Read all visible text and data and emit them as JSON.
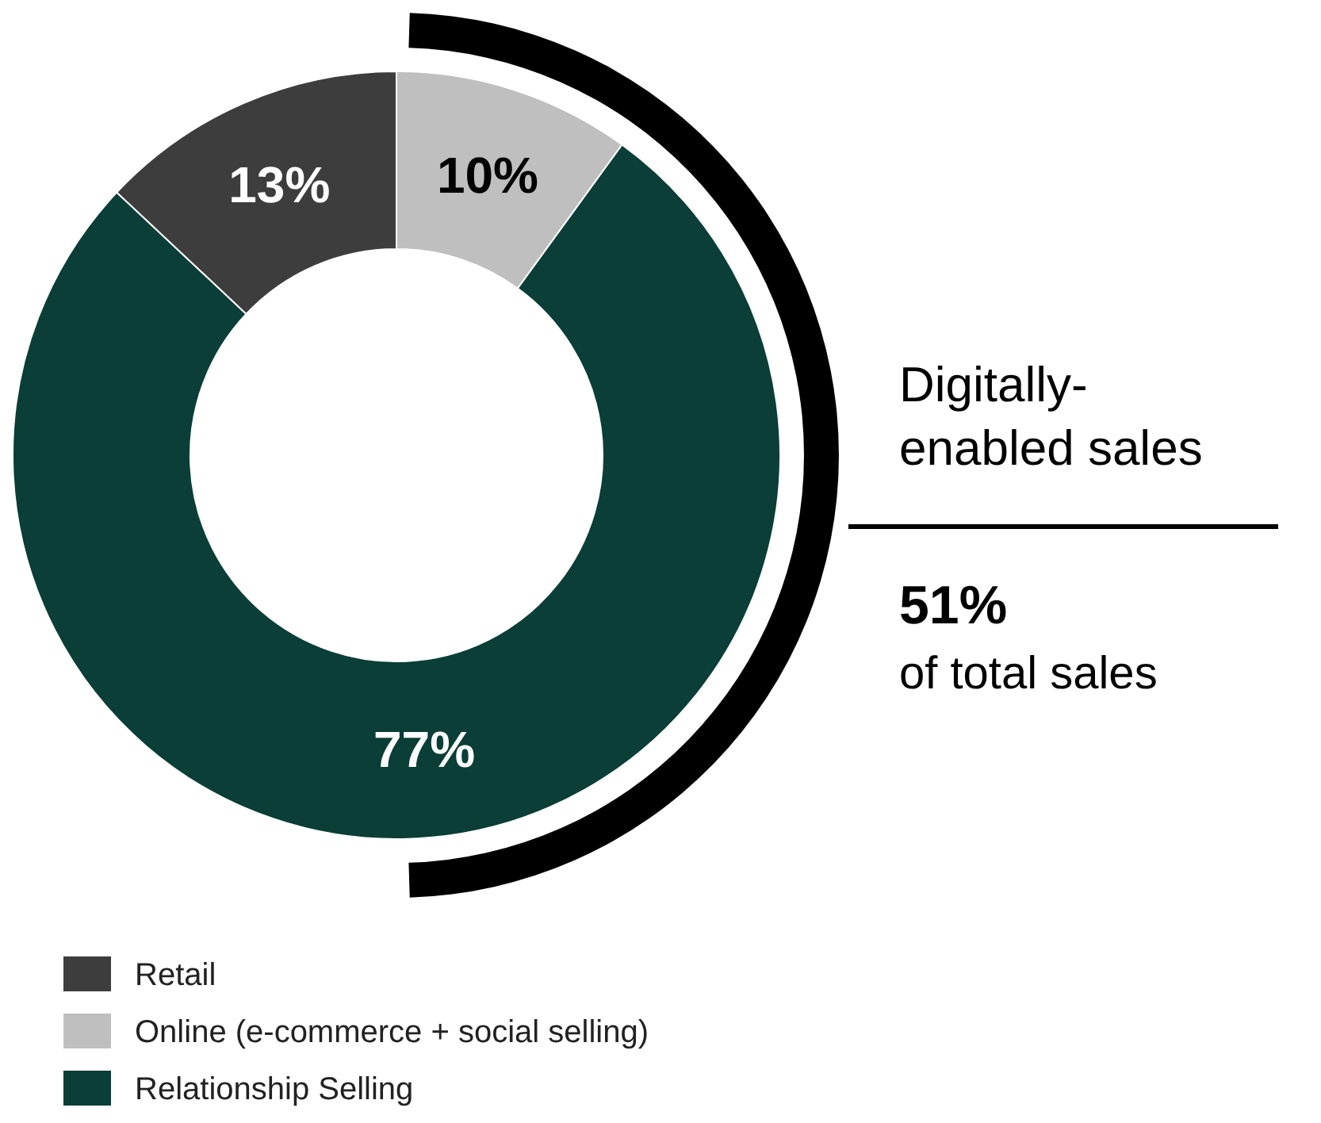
{
  "chart_data": {
    "type": "donut",
    "categories": [
      "Retail",
      "Online (e-commerce + social selling)",
      "Relationship Selling"
    ],
    "values": [
      13,
      10,
      77
    ],
    "colors": [
      "#3d3d3d",
      "#bfbfbf",
      "#0a3e36"
    ],
    "value_labels": [
      "13%",
      "10%",
      "77%"
    ],
    "legend": "bottom left",
    "annotations": [
      "Digitally-enabled sales",
      "51%",
      "of total sales"
    ]
  }
}
